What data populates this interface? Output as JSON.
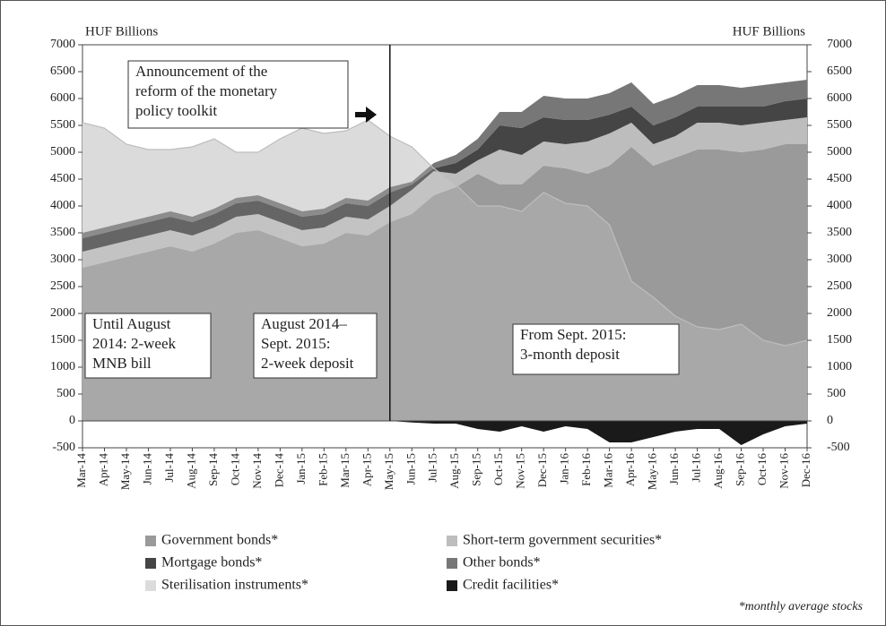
{
  "chart_data": {
    "type": "stacked_area",
    "y_label": "HUF Billions",
    "y2_label": "HUF Billions",
    "categories": [
      "Mar-14",
      "Apr-14",
      "May-14",
      "Jun-14",
      "Jul-14",
      "Aug-14",
      "Sep-14",
      "Oct-14",
      "Nov-14",
      "Dec-14",
      "Jan-15",
      "Feb-15",
      "Mar-15",
      "Apr-15",
      "May-15",
      "Jun-15",
      "Jul-15",
      "Aug-15",
      "Sep-15",
      "Oct-15",
      "Nov-15",
      "Dec-15",
      "Jan-16",
      "Feb-16",
      "Mar-16",
      "Apr-16",
      "May-16",
      "Jun-16",
      "Jul-16",
      "Aug-16",
      "Sep-16",
      "Oct-16",
      "Nov-16",
      "Dec-16"
    ],
    "series": [
      {
        "name": "Government bonds*",
        "color": "#9a9a9a",
        "values": [
          2850,
          2950,
          3050,
          3150,
          3250,
          3150,
          3300,
          3500,
          3550,
          3400,
          3250,
          3300,
          3500,
          3450,
          3700,
          3850,
          4200,
          4350,
          4600,
          4400,
          4400,
          4750,
          4700,
          4600,
          4750,
          5100,
          4750,
          4900,
          5050,
          5050,
          5000,
          5050,
          5150,
          5150
        ]
      },
      {
        "name": "Short-term government securities*",
        "color": "#bdbdbd",
        "values": [
          300,
          300,
          300,
          300,
          300,
          300,
          300,
          300,
          300,
          300,
          300,
          300,
          300,
          300,
          300,
          450,
          450,
          250,
          250,
          650,
          550,
          450,
          450,
          600,
          600,
          450,
          400,
          400,
          500,
          500,
          500,
          500,
          450,
          500
        ]
      },
      {
        "name": "Mortgage bonds*",
        "color": "#454545",
        "values": [
          250,
          250,
          250,
          250,
          250,
          250,
          250,
          250,
          250,
          250,
          250,
          250,
          250,
          250,
          250,
          100,
          50,
          200,
          200,
          450,
          500,
          450,
          450,
          400,
          350,
          300,
          350,
          350,
          300,
          300,
          350,
          300,
          350,
          350
        ]
      },
      {
        "name": "Other bonds*",
        "color": "#777777",
        "values": [
          100,
          100,
          100,
          100,
          100,
          100,
          100,
          100,
          100,
          100,
          100,
          100,
          100,
          100,
          100,
          50,
          100,
          150,
          200,
          250,
          300,
          400,
          400,
          400,
          400,
          450,
          400,
          400,
          400,
          400,
          350,
          400,
          350,
          350
        ]
      },
      {
        "name": "Sterilisation instruments*",
        "color": "#dcdcdc",
        "overlay": true,
        "values": [
          5550,
          5450,
          5150,
          5050,
          5050,
          5100,
          5250,
          5000,
          5000,
          5250,
          5450,
          5350,
          5400,
          5600,
          5300,
          5100,
          4700,
          4400,
          4000,
          4000,
          3900,
          4250,
          4050,
          4000,
          3650,
          2600,
          2300,
          1950,
          1750,
          1700,
          1800,
          1500,
          1400,
          1500
        ]
      },
      {
        "name": "Credit facilities*",
        "color": "#1a1a1a",
        "negative": true,
        "values": [
          0,
          0,
          0,
          0,
          0,
          0,
          0,
          0,
          0,
          0,
          0,
          0,
          0,
          0,
          0,
          -30,
          -50,
          -50,
          -150,
          -200,
          -100,
          -200,
          -100,
          -150,
          -400,
          -400,
          -300,
          -200,
          -150,
          -150,
          -450,
          -250,
          -100,
          -50
        ]
      }
    ],
    "ylim": [
      -500,
      7000
    ],
    "yticks": [
      -500,
      0,
      500,
      1000,
      1500,
      2000,
      2500,
      3000,
      3500,
      4000,
      4500,
      5000,
      5500,
      6000,
      6500,
      7000
    ],
    "y2lim": [
      -500,
      7000
    ],
    "y2ticks": [
      -500,
      0,
      500,
      1000,
      1500,
      2000,
      2500,
      3000,
      3500,
      4000,
      4500,
      5000,
      5500,
      6000,
      6500,
      7000
    ],
    "divider_category": 14,
    "annotations": [
      {
        "lines": [
          "Announcement of the",
          "reform of the monetary",
          "policy toolkit"
        ]
      },
      {
        "lines": [
          "Until August",
          "2014: 2-week",
          "MNB bill"
        ]
      },
      {
        "lines": [
          "August 2014–",
          "Sept. 2015:",
          "2-week deposit"
        ]
      },
      {
        "lines": [
          "From Sept. 2015:",
          "3-month deposit"
        ]
      }
    ],
    "footnote": "*monthly average stocks"
  }
}
